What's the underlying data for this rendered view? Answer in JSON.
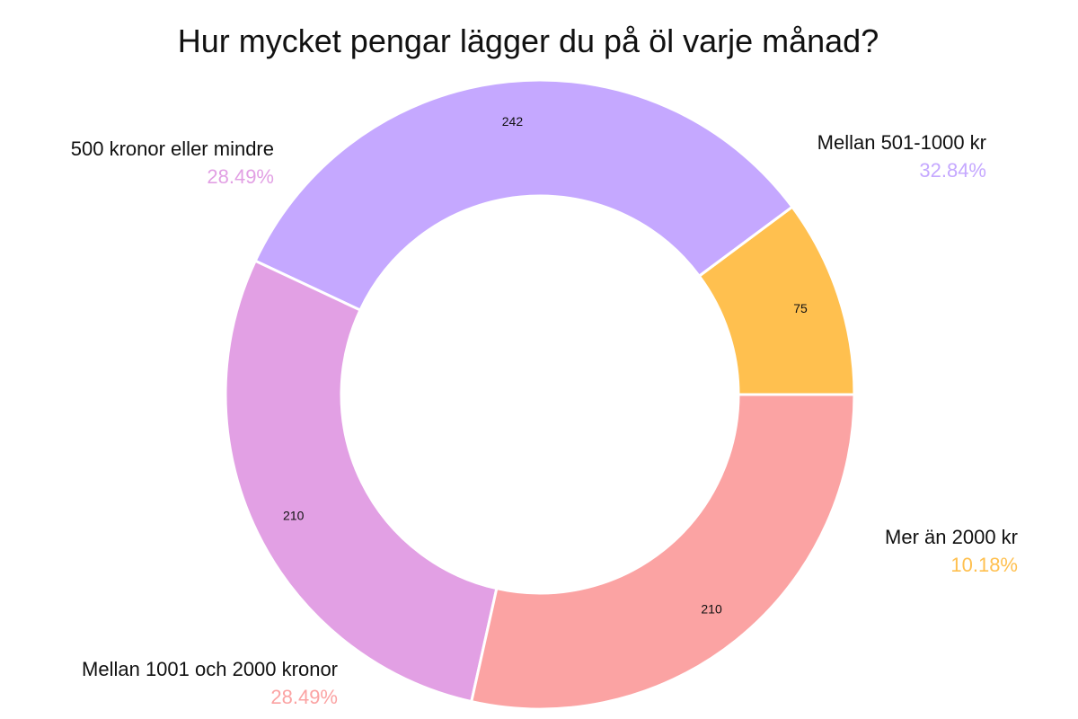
{
  "chart_data": {
    "type": "pie",
    "variant": "donut",
    "title": "Hur mycket pengar lägger du på öl varje månad?",
    "slices": [
      {
        "label": "Mer än 2000 kr",
        "value": 75,
        "percent": "10.18%",
        "color": "#FFC04F"
      },
      {
        "label": "Mellan 501-1000 kr",
        "value": 242,
        "percent": "32.84%",
        "color": "#C5A8FF"
      },
      {
        "label": "500 kronor eller mindre",
        "value": 210,
        "percent": "28.49%",
        "color": "#E2A0E4"
      },
      {
        "label": "Mellan 1001 och 2000 kronor",
        "value": 210,
        "percent": "28.49%",
        "color": "#FBA3A3"
      }
    ],
    "start_angle_deg": 0,
    "direction": "counterclockwise"
  }
}
